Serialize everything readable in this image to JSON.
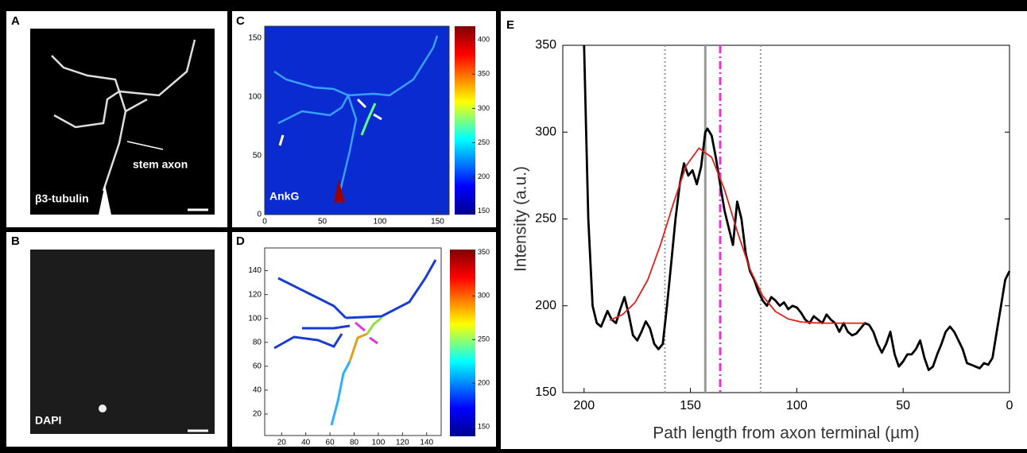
{
  "panels": {
    "a": {
      "label": "A",
      "annotation": "stem axon",
      "stain": "β3-tubulin"
    },
    "b": {
      "label": "B",
      "stain": "DAPI"
    },
    "c": {
      "label": "C",
      "stain": "AnkG"
    },
    "d": {
      "label": "D"
    },
    "e": {
      "label": "E"
    }
  },
  "chart_data": [
    {
      "type": "heatmap",
      "xlim": [
        0,
        160
      ],
      "ylim": [
        0,
        160
      ],
      "xticks": [
        0,
        50,
        100,
        150
      ],
      "yticks": [
        0,
        50,
        100,
        150
      ],
      "colorbar_lim": [
        145,
        420
      ],
      "colorbar_ticks": [
        150,
        200,
        250,
        300,
        350,
        400
      ]
    },
    {
      "type": "heatmap",
      "xlim": [
        6,
        152
      ],
      "ylim": [
        2,
        159
      ],
      "xticks": [
        20,
        40,
        60,
        80,
        100,
        120,
        140
      ],
      "yticks": [
        20,
        40,
        60,
        80,
        100,
        120,
        140
      ],
      "colorbar_lim": [
        140,
        355
      ],
      "colorbar_ticks": [
        150,
        200,
        250,
        300,
        350
      ]
    },
    {
      "type": "line",
      "x_label": "Path length from axon terminal (µm)",
      "y_label": "Intensity (a.u.)",
      "xlim": [
        210,
        0
      ],
      "ylim": [
        150,
        350
      ],
      "xticks": [
        200,
        150,
        100,
        50,
        0
      ],
      "yticks": [
        150,
        200,
        250,
        300,
        350
      ],
      "series": [
        {
          "color": "#000000",
          "x": [
            200,
            199,
            198,
            196,
            194,
            192,
            189,
            187,
            185,
            183,
            181,
            179,
            177,
            175,
            173,
            171,
            169,
            167,
            165,
            163,
            161,
            159,
            157,
            155,
            153,
            151,
            149,
            147,
            145,
            143,
            142,
            140,
            138,
            136,
            134,
            132,
            130,
            128,
            126,
            124,
            122,
            120,
            118,
            116,
            114,
            112,
            110,
            108,
            106,
            104,
            102,
            100,
            98,
            96,
            94,
            92,
            90,
            88,
            86,
            84,
            82,
            80,
            78,
            76,
            74,
            72,
            70,
            68,
            66,
            64,
            62,
            60,
            58,
            56,
            54,
            52,
            50,
            48,
            46,
            44,
            42,
            40,
            38,
            36,
            34,
            32,
            30,
            28,
            26,
            24,
            22,
            20,
            18,
            16,
            14,
            12,
            10,
            8,
            6,
            4,
            2,
            0
          ],
          "values": [
            350,
            300,
            250,
            200,
            190,
            188,
            197,
            192,
            190,
            198,
            205,
            195,
            183,
            180,
            185,
            191,
            187,
            178,
            175,
            178,
            200,
            225,
            250,
            270,
            282,
            275,
            278,
            270,
            280,
            300,
            302,
            298,
            285,
            270,
            255,
            245,
            235,
            260,
            250,
            230,
            220,
            215,
            208,
            203,
            200,
            205,
            203,
            200,
            202,
            198,
            200,
            199,
            196,
            192,
            190,
            194,
            192,
            190,
            195,
            192,
            190,
            185,
            190,
            185,
            183,
            184,
            187,
            190,
            189,
            185,
            178,
            173,
            178,
            185,
            172,
            165,
            168,
            172,
            172,
            175,
            180,
            170,
            163,
            165,
            172,
            178,
            185,
            188,
            185,
            180,
            175,
            167,
            166,
            165,
            164,
            167,
            166,
            170,
            185,
            200,
            215,
            220
          ]
        },
        {
          "color": "#e0201b",
          "x": [
            188,
            182,
            176,
            170,
            164,
            158,
            152,
            146,
            140,
            134,
            128,
            122,
            116,
            110,
            104,
            98,
            92,
            86,
            80,
            74,
            68
          ],
          "values": [
            191.6,
            194.8,
            201.9,
            215,
            235.4,
            259,
            280.6,
            290.8,
            285.5,
            267,
            243,
            221,
            205.6,
            196.7,
            192.4,
            190.7,
            190.2,
            190,
            190,
            190,
            190
          ]
        }
      ],
      "vlines": [
        {
          "x": 162,
          "color": "#999999",
          "style": "dotted"
        },
        {
          "x": 117,
          "color": "#999999",
          "style": "dotted"
        },
        {
          "x": 143,
          "color": "#999999",
          "style": "solid"
        },
        {
          "x": 136,
          "color": "#e535d8",
          "style": "dashdot"
        }
      ]
    }
  ]
}
